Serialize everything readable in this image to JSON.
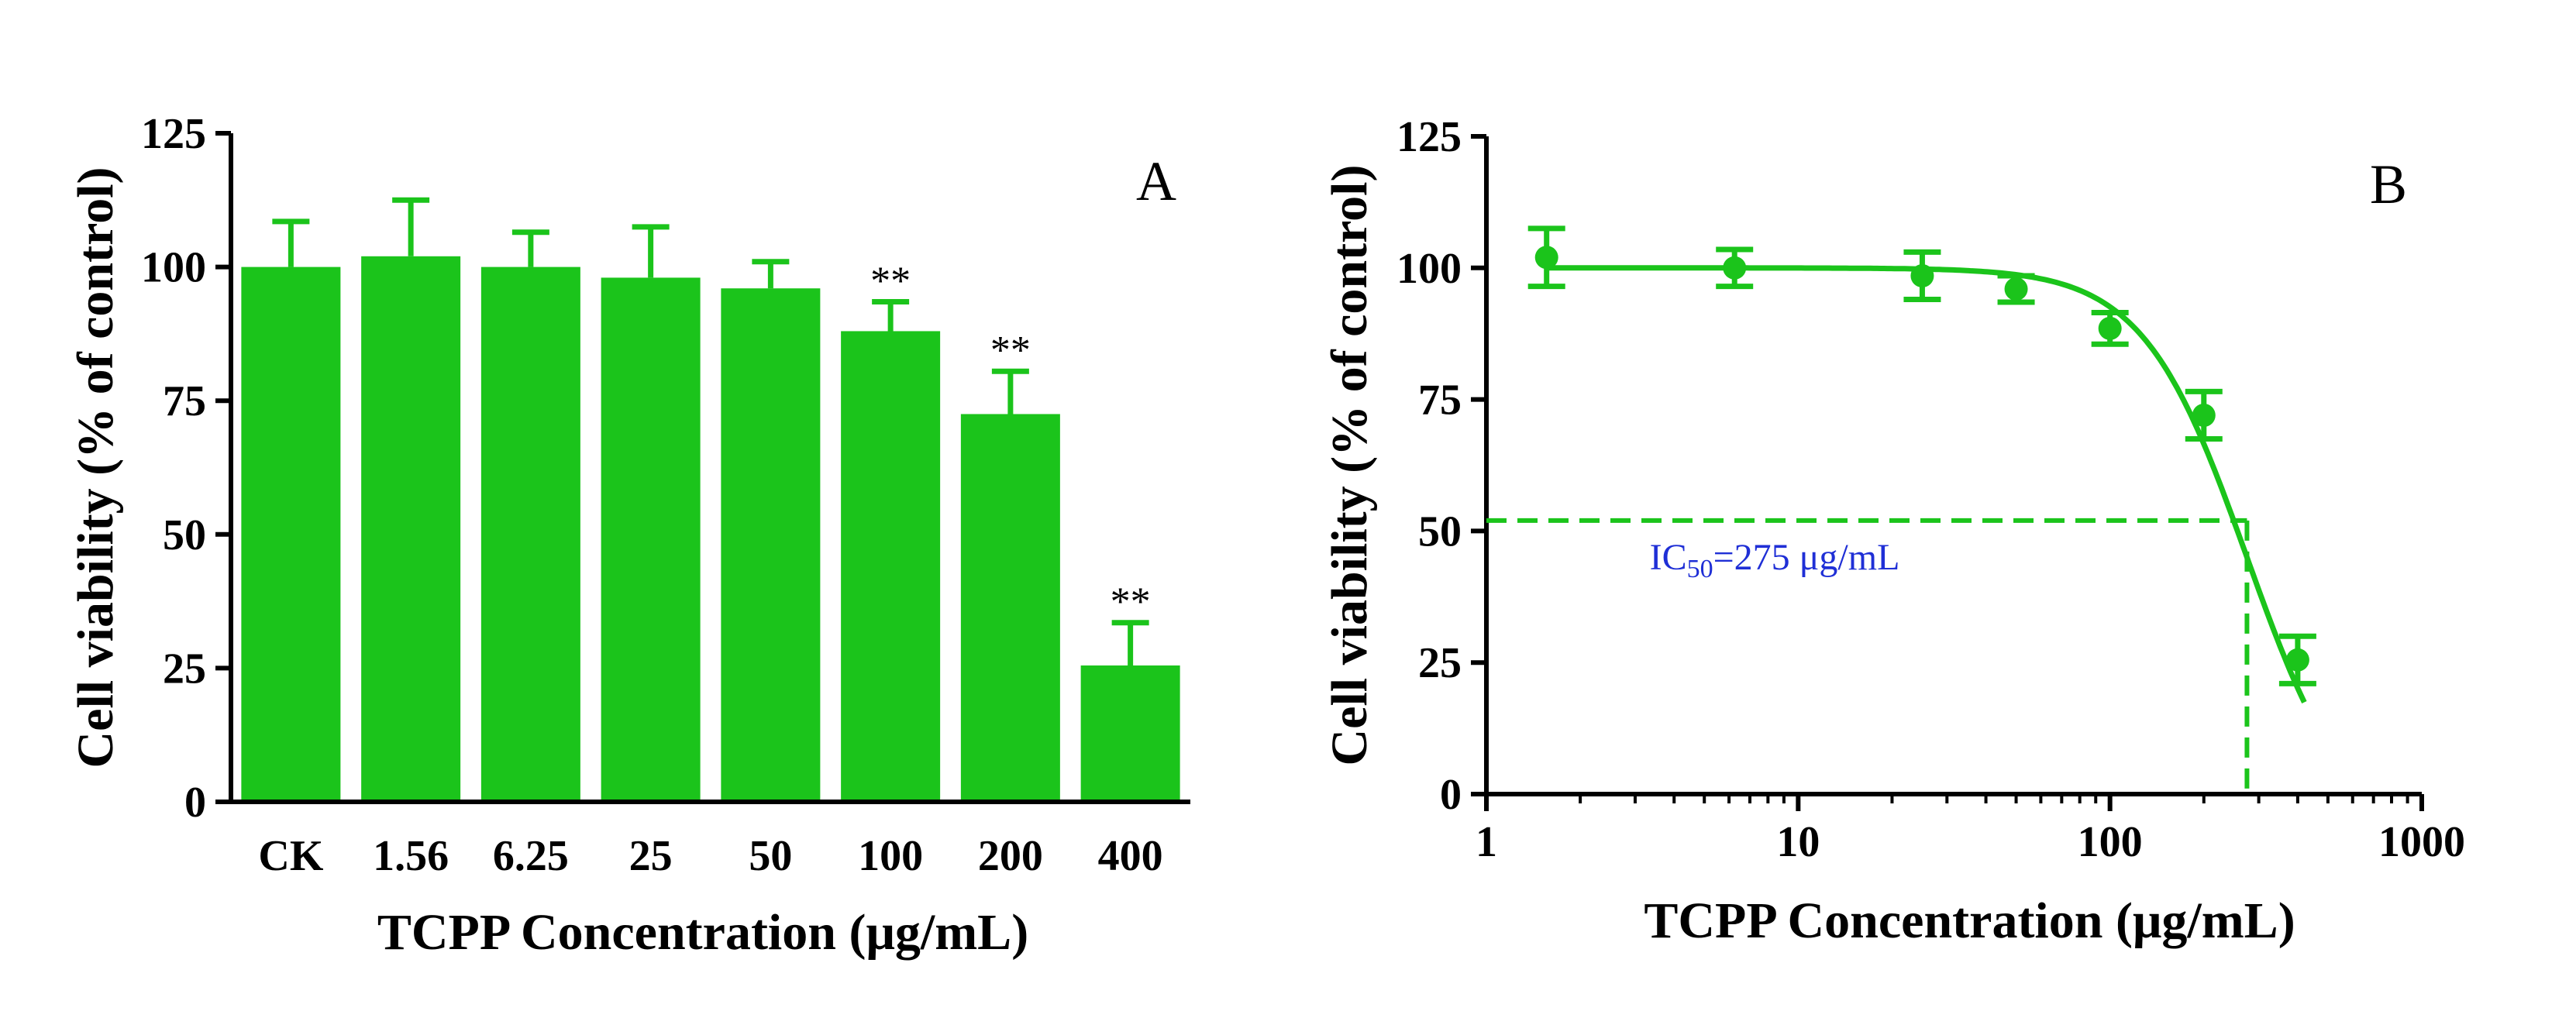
{
  "chart_data": [
    {
      "type": "bar",
      "panel_label": "A",
      "categories": [
        "CK",
        "1.56",
        "6.25",
        "25",
        "50",
        "100",
        "200",
        "400"
      ],
      "values": [
        100,
        102,
        100,
        98,
        96,
        88,
        72.5,
        25.5
      ],
      "errors": [
        8.5,
        10.5,
        6.5,
        9.5,
        5,
        5.5,
        8,
        8
      ],
      "significance": [
        "",
        "",
        "",
        "",
        "",
        "**",
        "**",
        "**"
      ],
      "xlabel": "TCPP Concentration (μg/mL)",
      "ylabel": "Cell viability (% of control)",
      "ylim": [
        0,
        125
      ],
      "yticks": [
        "0",
        "25",
        "50",
        "75",
        "100",
        "125"
      ],
      "color": "#1bc41b",
      "grid": false
    },
    {
      "type": "scatter",
      "panel_label": "B",
      "x_scale": "log",
      "x": [
        1.56,
        6.25,
        25,
        50,
        100,
        200,
        400
      ],
      "y": [
        102,
        100,
        98.5,
        96,
        88.5,
        72,
        25.5
      ],
      "errors": [
        5.5,
        3.5,
        4.5,
        2.5,
        3,
        4.5,
        4.5
      ],
      "fit_curve": {
        "top": 100,
        "bottom": -10,
        "ic50": 275,
        "hill": 2.6
      },
      "ic50_marker": {
        "x": 275,
        "y": 52
      },
      "ic50_label": {
        "prefix": "IC",
        "subscript": "50",
        "suffix": "=275 μg/mL"
      },
      "xlabel": "TCPP Concentration (μg/mL)",
      "ylabel": "Cell viability (% of control)",
      "xlim": [
        1,
        1000
      ],
      "ylim": [
        0,
        125
      ],
      "xticks": [
        "1",
        "10",
        "100",
        "1000"
      ],
      "yticks": [
        "0",
        "25",
        "50",
        "75",
        "100",
        "125"
      ],
      "color": "#1bc41b",
      "label_color": "#1f2fd6",
      "grid": false
    }
  ]
}
